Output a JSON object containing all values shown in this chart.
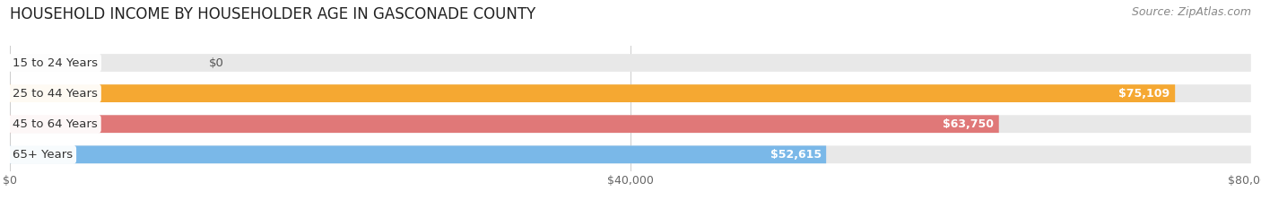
{
  "title": "HOUSEHOLD INCOME BY HOUSEHOLDER AGE IN GASCONADE COUNTY",
  "source": "Source: ZipAtlas.com",
  "categories": [
    "15 to 24 Years",
    "25 to 44 Years",
    "45 to 64 Years",
    "65+ Years"
  ],
  "values": [
    0,
    75109,
    63750,
    52615
  ],
  "bar_colors": [
    "#f2a0b8",
    "#f5a832",
    "#e07878",
    "#7ab8e8"
  ],
  "value_labels": [
    "$0",
    "$75,109",
    "$63,750",
    "$52,615"
  ],
  "xlim": [
    0,
    80000
  ],
  "xticks": [
    0,
    40000,
    80000
  ],
  "xtick_labels": [
    "$0",
    "$40,000",
    "$80,000"
  ],
  "background_color": "#ffffff",
  "plot_bg_color": "#ffffff",
  "bar_background": "#e8e8e8",
  "title_fontsize": 12,
  "source_fontsize": 9,
  "bar_height": 0.58,
  "figsize": [
    14.06,
    2.33
  ]
}
